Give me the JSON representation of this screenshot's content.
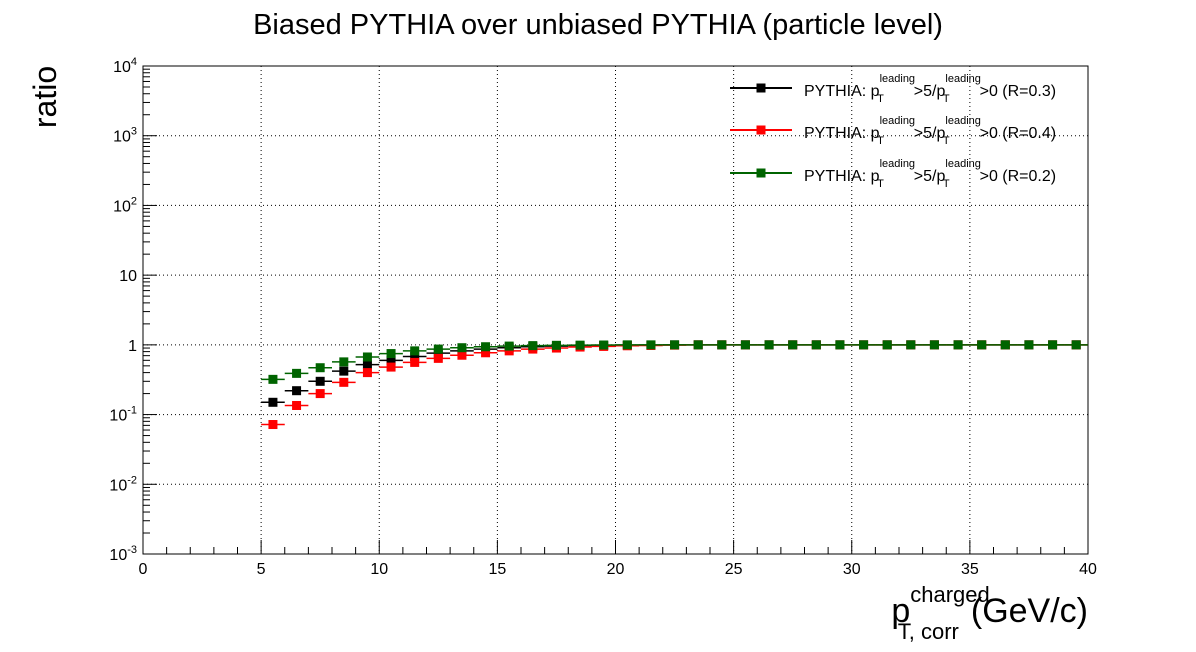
{
  "chart_data": {
    "type": "scatter",
    "title": "Biased PYTHIA over unbiased PYTHIA (particle level)",
    "ylabel": "ratio",
    "xlabel": {
      "main": "p",
      "superscript": "charged",
      "subscript": "T, corr",
      "unit": "(GeV/c)"
    },
    "xlim": [
      0,
      40
    ],
    "ylim": [
      0.001,
      10000
    ],
    "y_scale": "log",
    "grid": true,
    "legend_position": "top-right",
    "x_ticks": [
      "0",
      "5",
      "10",
      "15",
      "20",
      "25",
      "30",
      "35",
      "40"
    ],
    "y_ticks": [
      {
        "base": "10",
        "exp": "-3"
      },
      {
        "base": "10",
        "exp": "-2"
      },
      {
        "base": "10",
        "exp": "-1"
      },
      {
        "base": "1",
        "exp": ""
      },
      {
        "base": "10",
        "exp": ""
      },
      {
        "base": "10",
        "exp": "2"
      },
      {
        "base": "10",
        "exp": "3"
      },
      {
        "base": "10",
        "exp": "4"
      }
    ],
    "x": [
      5.5,
      6.5,
      7.5,
      8.5,
      9.5,
      10.5,
      11.5,
      12.5,
      13.5,
      14.5,
      15.5,
      16.5,
      17.5,
      18.5,
      19.5,
      20.5,
      21.5,
      22.5,
      23.5,
      24.5,
      25.5,
      26.5,
      27.5,
      28.5,
      29.5,
      30.5,
      31.5,
      32.5,
      33.5,
      34.5,
      35.5,
      36.5,
      37.5,
      38.5,
      39.5
    ],
    "x_error": 0.5,
    "series": [
      {
        "legend": {
          "prefix": "PYTHIA: p",
          "sub1": "T",
          "sup1": "leading",
          "mid": ">5/p",
          "sub2": "T",
          "sup2": "leading",
          "suffix": ">0 (R=0.3)"
        },
        "color": "#000000",
        "values": [
          0.15,
          0.22,
          0.3,
          0.42,
          0.52,
          0.6,
          0.68,
          0.76,
          0.82,
          0.87,
          0.91,
          0.94,
          0.96,
          0.975,
          0.985,
          0.99,
          0.995,
          1.0,
          1.0,
          1.0,
          1.0,
          1.0,
          1.0,
          1.0,
          1.0,
          1.0,
          1.0,
          1.0,
          1.0,
          1.0,
          1.0,
          1.0,
          1.0,
          1.0,
          1.0
        ]
      },
      {
        "legend": {
          "prefix": "PYTHIA: p",
          "sub1": "T",
          "sup1": "leading",
          "mid": ">5/p",
          "sub2": "T",
          "sup2": "leading",
          "suffix": ">0 (R=0.4)"
        },
        "color": "#ff0000",
        "values": [
          0.072,
          0.135,
          0.2,
          0.29,
          0.4,
          0.48,
          0.56,
          0.64,
          0.71,
          0.77,
          0.82,
          0.87,
          0.9,
          0.93,
          0.95,
          0.97,
          0.98,
          0.99,
          1.0,
          1.0,
          1.0,
          1.0,
          1.0,
          1.0,
          1.0,
          1.0,
          1.0,
          1.0,
          1.0,
          1.0,
          1.0,
          1.0,
          1.0,
          1.0,
          1.0
        ]
      },
      {
        "legend": {
          "prefix": "PYTHIA: p",
          "sub1": "T",
          "sup1": "leading",
          "mid": ">5/p",
          "sub2": "T",
          "sup2": "leading",
          "suffix": ">0 (R=0.2)"
        },
        "color": "#006400",
        "values": [
          0.32,
          0.39,
          0.47,
          0.57,
          0.67,
          0.75,
          0.82,
          0.87,
          0.91,
          0.94,
          0.96,
          0.975,
          0.985,
          0.99,
          0.995,
          1.0,
          1.0,
          1.0,
          1.0,
          1.0,
          1.0,
          1.0,
          1.0,
          1.0,
          1.0,
          1.0,
          1.0,
          1.0,
          1.0,
          1.0,
          1.0,
          1.0,
          1.0,
          1.0,
          1.0
        ]
      }
    ]
  }
}
